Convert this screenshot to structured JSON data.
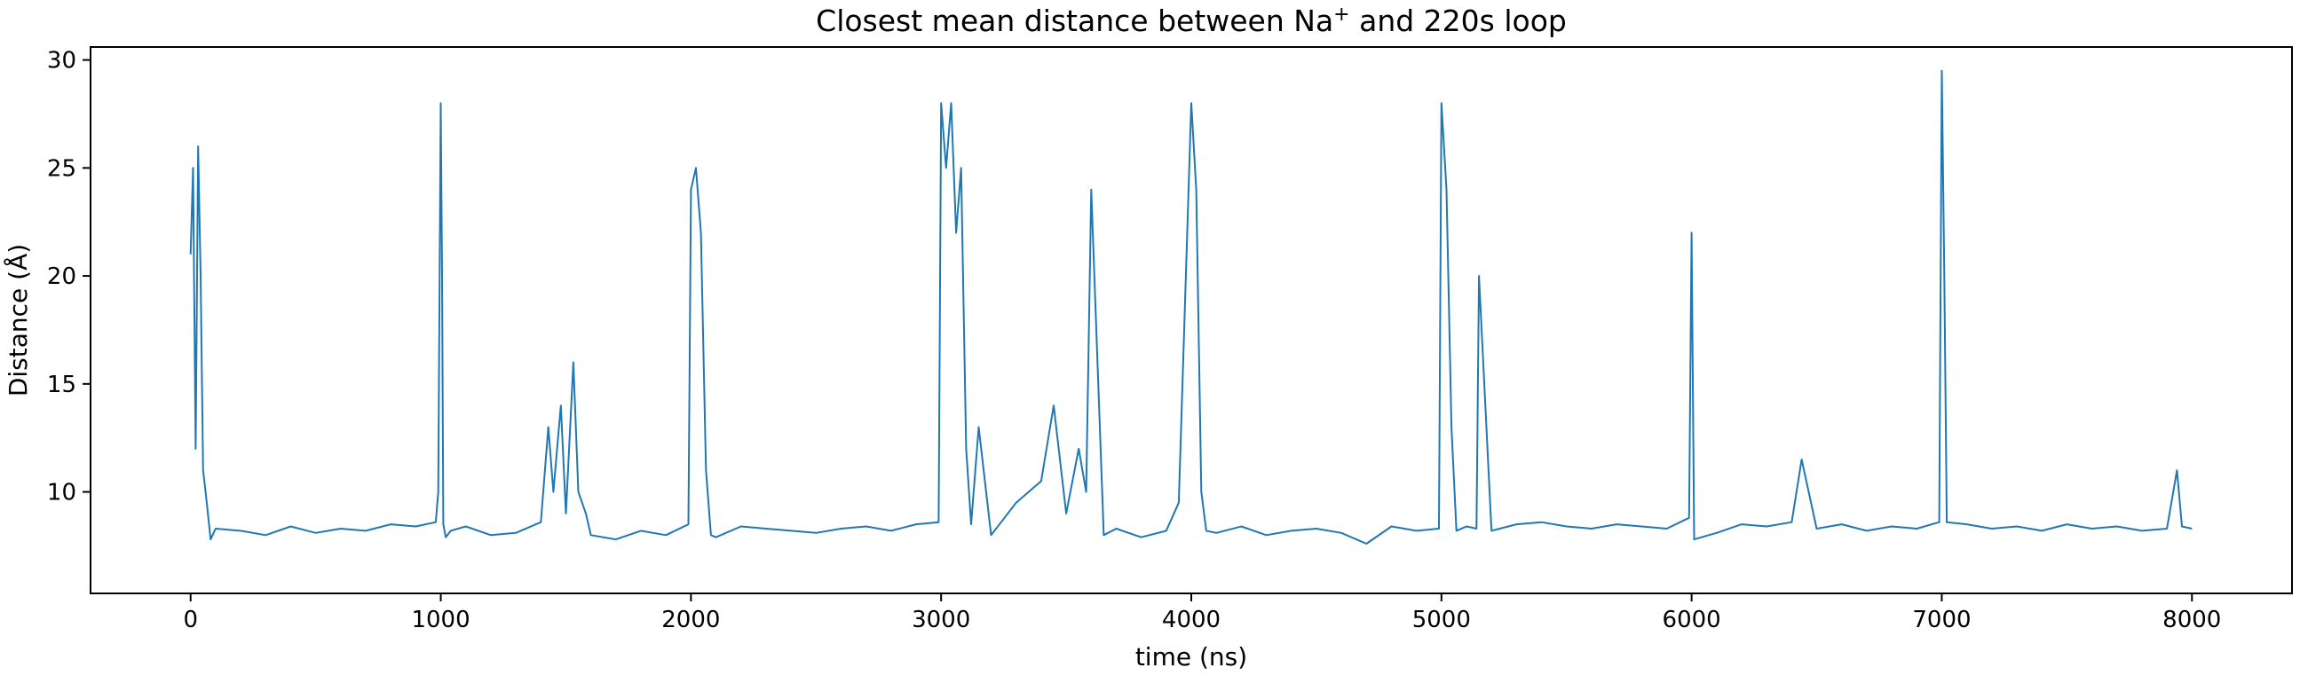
{
  "chart_data": {
    "type": "line",
    "title_main": "Closest mean distance between Na",
    "title_sup": "+",
    "title_rest": " and 220s loop",
    "xlabel": "time (ns)",
    "ylabel": "Distance (Å)",
    "xlim": [
      -400,
      8400
    ],
    "ylim": [
      5.3,
      30.6
    ],
    "x_ticks": [
      0,
      1000,
      2000,
      3000,
      4000,
      5000,
      6000,
      7000,
      8000
    ],
    "x_tick_labels": [
      "0",
      "1000",
      "2000",
      "3000",
      "4000",
      "5000",
      "6000",
      "7000",
      "8000"
    ],
    "y_ticks": [
      10,
      15,
      20,
      25,
      30
    ],
    "y_tick_labels": [
      "10",
      "15",
      "20",
      "25",
      "30"
    ],
    "grid": false,
    "line_color": "#1f77b4",
    "series": [
      {
        "x": [
          0,
          10,
          20,
          30,
          40,
          50,
          60,
          80,
          100,
          200,
          300,
          400,
          500,
          600,
          700,
          800,
          900,
          980,
          990,
          1000,
          1005,
          1010,
          1020,
          1040,
          1100,
          1200,
          1300,
          1400,
          1430,
          1450,
          1480,
          1500,
          1530,
          1550,
          1580,
          1600,
          1700,
          1800,
          1900,
          1990,
          2000,
          2020,
          2040,
          2060,
          2080,
          2100,
          2200,
          2300,
          2400,
          2500,
          2600,
          2700,
          2800,
          2900,
          2990,
          3000,
          3020,
          3040,
          3060,
          3080,
          3100,
          3120,
          3150,
          3200,
          3300,
          3400,
          3450,
          3500,
          3550,
          3580,
          3600,
          3650,
          3700,
          3800,
          3900,
          3950,
          4000,
          4020,
          4040,
          4060,
          4100,
          4200,
          4300,
          4400,
          4500,
          4600,
          4700,
          4800,
          4900,
          4990,
          5000,
          5020,
          5040,
          5060,
          5100,
          5140,
          5150,
          5200,
          5300,
          5400,
          5500,
          5600,
          5700,
          5800,
          5900,
          5990,
          6000,
          6010,
          6100,
          6200,
          6300,
          6400,
          6440,
          6500,
          6600,
          6700,
          6800,
          6900,
          6990,
          7000,
          7010,
          7020,
          7100,
          7200,
          7300,
          7400,
          7500,
          7600,
          7700,
          7800,
          7900,
          7940,
          7960,
          8000
        ],
        "y": [
          21,
          25,
          12,
          26,
          20,
          11,
          10,
          7.8,
          8.3,
          8.2,
          8.0,
          8.4,
          8.1,
          8.3,
          8.2,
          8.5,
          8.4,
          8.6,
          10,
          28,
          20,
          8.5,
          7.9,
          8.2,
          8.4,
          8.0,
          8.1,
          8.6,
          13,
          10,
          14,
          9,
          16,
          10,
          9,
          8.0,
          7.8,
          8.2,
          8.0,
          8.5,
          24,
          25,
          22,
          11,
          8.0,
          7.9,
          8.4,
          8.3,
          8.2,
          8.1,
          8.3,
          8.4,
          8.2,
          8.5,
          8.6,
          28,
          25,
          28,
          22,
          25,
          12,
          8.5,
          13,
          8.0,
          9.5,
          10.5,
          14,
          9,
          12,
          10,
          24,
          8.0,
          8.3,
          7.9,
          8.2,
          9.5,
          28,
          24,
          10,
          8.2,
          8.1,
          8.4,
          8.0,
          8.2,
          8.3,
          8.1,
          7.6,
          8.4,
          8.2,
          8.3,
          28,
          24,
          13,
          8.2,
          8.4,
          8.3,
          20,
          8.2,
          8.5,
          8.6,
          8.4,
          8.3,
          8.5,
          8.4,
          8.3,
          8.8,
          22,
          7.8,
          8.1,
          8.5,
          8.4,
          8.6,
          11.5,
          8.3,
          8.5,
          8.2,
          8.4,
          8.3,
          8.6,
          29.5,
          20,
          8.6,
          8.5,
          8.3,
          8.4,
          8.2,
          8.5,
          8.3,
          8.4,
          8.2,
          8.3,
          11,
          8.4,
          8.3
        ]
      }
    ]
  }
}
